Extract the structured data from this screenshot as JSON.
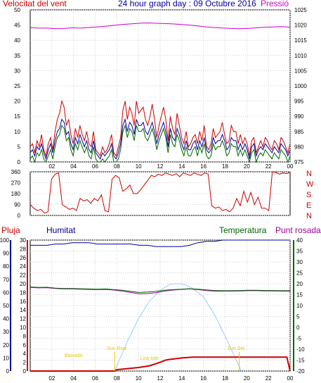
{
  "header": {
    "wind_label": "Velocitat del vent",
    "title": "24 hour graph day : 09 Octubre 2016",
    "pressure_label": "Pressió"
  },
  "footer_labels": {
    "rain": "Pluja",
    "humidity": "Humitat",
    "temperature": "Temperatura",
    "dewpoint": "Punt rosada"
  },
  "colors": {
    "wind": "#cc0000",
    "pressure": "#cc00cc",
    "direction": "#cc0000",
    "humidity": "#000099",
    "temperature": "#006600",
    "dewpoint": "#990099",
    "rain": "#cc0000",
    "solar": "#99ccff",
    "annotation": "#e6c800"
  },
  "chart_data": [
    {
      "type": "line",
      "name": "wind_pressure",
      "x_ticks": [
        "02",
        "04",
        "06",
        "08",
        "10",
        "12",
        "14",
        "16",
        "18",
        "20",
        "22",
        "00"
      ],
      "y_left_ticks": [
        0,
        5,
        10,
        15,
        20,
        25,
        30,
        35,
        40,
        45,
        50
      ],
      "y_right_ticks": [
        975,
        980,
        985,
        990,
        995,
        1000,
        1005,
        1010,
        1015,
        1020,
        1025
      ],
      "ylim_left": [
        0,
        50
      ],
      "ylim_right": [
        975,
        1025
      ],
      "grid": true,
      "series": [
        {
          "name": "Pressió",
          "axis": "right",
          "values": [
            1019.2,
            1019.0,
            1019.0,
            1018.8,
            1018.9,
            1019.1,
            1019.0,
            1019.2,
            1019.4,
            1019.6,
            1019.9,
            1020.2,
            1020.4,
            1020.6,
            1020.7,
            1020.6,
            1020.5,
            1020.4,
            1020.2,
            1020.0,
            1019.7,
            1019.4,
            1019.2,
            1019.0,
            1018.9,
            1018.8,
            1018.9,
            1019.1,
            1019.3,
            1019.4,
            1019.5,
            1019.3
          ]
        },
        {
          "name": "gust",
          "axis": "left",
          "values": [
            5,
            6,
            3,
            7,
            5,
            9,
            4,
            2,
            6,
            8,
            4,
            10,
            14,
            16,
            20,
            18,
            12,
            14,
            9,
            6,
            11,
            8,
            12,
            9,
            7,
            10,
            6,
            5,
            10,
            4,
            3,
            2,
            5,
            3,
            4,
            6,
            9,
            3,
            2,
            5,
            8,
            17,
            20,
            14,
            18,
            16,
            12,
            20,
            16,
            17,
            18,
            14,
            12,
            15,
            19,
            14,
            8,
            12,
            15,
            18,
            14,
            7,
            15,
            11,
            9,
            16,
            12,
            8,
            6,
            10,
            5,
            6,
            8,
            9,
            6,
            10,
            7,
            12,
            5,
            4,
            6,
            11,
            8,
            9,
            10,
            13,
            9,
            6,
            7,
            12,
            10,
            10,
            6,
            9,
            6,
            8,
            6,
            2,
            7,
            8,
            3,
            5,
            7,
            5,
            8,
            7,
            5,
            4,
            7,
            6,
            4,
            8,
            7,
            5,
            3,
            6
          ]
        },
        {
          "name": "wind",
          "axis": "left",
          "values": [
            3,
            4,
            2,
            5,
            4,
            6,
            3,
            1,
            4,
            6,
            3,
            7,
            10,
            11,
            14,
            13,
            9,
            10,
            6,
            4,
            8,
            6,
            9,
            7,
            5,
            7,
            4,
            3,
            7,
            3,
            2,
            1,
            3,
            2,
            3,
            4,
            6,
            2,
            1,
            3,
            6,
            12,
            14,
            10,
            13,
            12,
            9,
            14,
            12,
            12,
            13,
            10,
            9,
            11,
            13,
            10,
            6,
            9,
            11,
            13,
            10,
            5,
            11,
            8,
            7,
            11,
            9,
            6,
            4,
            7,
            4,
            4,
            6,
            7,
            4,
            7,
            5,
            8,
            4,
            3,
            4,
            8,
            6,
            7,
            7,
            9,
            7,
            4,
            5,
            8,
            7,
            7,
            4,
            6,
            4,
            6,
            4,
            1,
            5,
            6,
            2,
            4,
            5,
            4,
            6,
            5,
            4,
            3,
            5,
            4,
            3,
            6,
            5,
            4,
            2,
            4
          ]
        }
      ]
    },
    {
      "type": "line",
      "name": "direction",
      "y_ticks": [
        0,
        90,
        180,
        270,
        360
      ],
      "y_right_labels": [
        "N",
        "W",
        "S",
        "E",
        "N"
      ],
      "ylim": [
        0,
        360
      ],
      "grid": true,
      "series": [
        {
          "name": "direction",
          "values": [
            90,
            60,
            40,
            50,
            20,
            30,
            300,
            340,
            350,
            90,
            70,
            50,
            60,
            40,
            140,
            120,
            130,
            100,
            140,
            120,
            170,
            40,
            30,
            300,
            330,
            310,
            200,
            220,
            250,
            180,
            180,
            210,
            250,
            290,
            330,
            320,
            340,
            330,
            350,
            340,
            330,
            345,
            320,
            350,
            340,
            330,
            350,
            340,
            330,
            350,
            340,
            80,
            60,
            70,
            40,
            50,
            30,
            60,
            140,
            80,
            200,
            110,
            190,
            90,
            150,
            60,
            60,
            40,
            360,
            355,
            340,
            350,
            345,
            355
          ]
        }
      ]
    },
    {
      "type": "line",
      "name": "temp_hum_rain",
      "y_left_ticks": [
        0,
        10,
        20,
        30,
        40,
        50,
        60,
        70,
        80,
        90,
        100
      ],
      "y_rain_ticks": [
        0,
        2,
        4,
        6,
        8,
        10,
        12,
        14,
        16,
        18,
        20,
        22,
        24,
        26,
        28,
        30
      ],
      "y_right_ticks": [
        40,
        35,
        30,
        25,
        20,
        15,
        10,
        5,
        0,
        -5,
        -10,
        -15,
        -20
      ],
      "ylim_humidity": [
        0,
        100
      ],
      "ylim_rain": [
        0,
        30
      ],
      "ylim_temp": [
        -20,
        40
      ],
      "annotations": [
        "Baixada",
        "Sun Rise",
        "Low tide",
        "Sun Set"
      ],
      "series": [
        {
          "name": "Humitat",
          "axis": "humidity",
          "values": [
            96,
            96,
            96,
            97,
            97,
            98,
            98,
            98,
            97,
            97,
            97,
            97,
            97,
            96,
            96,
            95,
            95,
            95,
            95,
            96,
            98,
            99,
            99,
            100,
            100,
            100,
            100,
            100,
            100,
            100,
            100,
            100
          ]
        },
        {
          "name": "Temperatura",
          "axis": "temp",
          "values": [
            18.5,
            18.3,
            18.4,
            18.0,
            17.8,
            17.8,
            17.7,
            17.6,
            17.5,
            17.6,
            17.3,
            17.0,
            16.5,
            16.0,
            16.2,
            16.5,
            17.0,
            17.3,
            17.5,
            17.7,
            17.5,
            17.2,
            16.9,
            16.8,
            16.8,
            16.9,
            17.0,
            17.0,
            16.9,
            16.9,
            16.8,
            16.8
          ]
        },
        {
          "name": "Punt rosada",
          "axis": "temp",
          "values": [
            18.3,
            18.1,
            18.2,
            17.8,
            17.6,
            17.6,
            17.5,
            17.4,
            17.3,
            17.4,
            17.1,
            16.6,
            16.0,
            15.4,
            15.5,
            15.9,
            16.6,
            17.1,
            17.4,
            17.6,
            17.3,
            16.9,
            16.6,
            16.6,
            16.6,
            16.7,
            16.8,
            16.8,
            16.7,
            16.7,
            16.6,
            16.6
          ]
        },
        {
          "name": "Pluja",
          "axis": "rain",
          "x": [
            0,
            7.8,
            8,
            10,
            11,
            12,
            12.5,
            13,
            14,
            15,
            16,
            17,
            18,
            20,
            23.7,
            24
          ],
          "values": [
            0,
            0,
            0.3,
            0.8,
            1.2,
            2.0,
            2.5,
            2.7,
            3.0,
            3.2,
            3.2,
            3.2,
            3.2,
            3.2,
            3.2,
            0
          ]
        },
        {
          "name": "solar",
          "axis": "rain",
          "x": [
            7.8,
            9,
            10,
            11,
            12,
            13,
            14,
            15,
            16,
            17,
            18,
            19.5
          ],
          "values": [
            0,
            7,
            12,
            16,
            18.5,
            20,
            20,
            19,
            17,
            13,
            8,
            0
          ]
        }
      ]
    }
  ]
}
